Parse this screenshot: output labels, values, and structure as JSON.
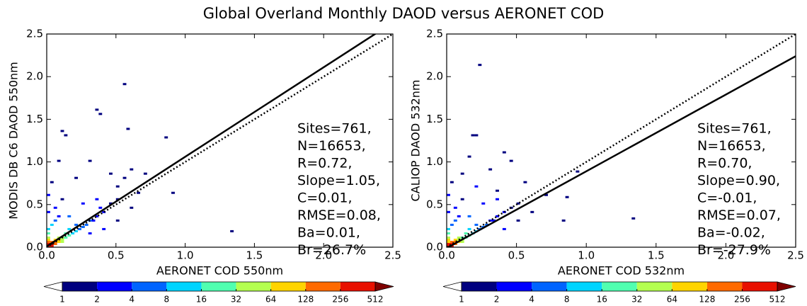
{
  "title": "Global Overland Monthly DAOD versus AERONET COD",
  "chart_data": [
    {
      "type": "density",
      "xlabel": "AERONET COD 550nm",
      "ylabel": "MODIS DB C6 DAOD 550nm",
      "xlim": [
        0,
        2.5
      ],
      "ylim": [
        0,
        2.5
      ],
      "xticks": [
        {
          "value": 0,
          "label": "0.0"
        },
        {
          "value": 0.5,
          "label": "0.5"
        },
        {
          "value": 1,
          "label": "1.0"
        },
        {
          "value": 1.5,
          "label": "1.5"
        },
        {
          "value": 2,
          "label": "2.0"
        },
        2.5
      ],
      "yticks": [
        {
          "value": 0,
          "label": "0.0"
        },
        {
          "value": 0.5,
          "label": "0.5"
        },
        {
          "value": 1,
          "label": "1.0"
        },
        {
          "value": 1.5,
          "label": "1.5"
        },
        {
          "value": 2,
          "label": "2.0"
        },
        2.5
      ],
      "bin_width": 0.025,
      "cells": {
        "x": [
          0,
          0.025,
          0,
          0.025,
          0.05,
          0.025,
          0.05,
          0.075,
          0.05,
          0.075,
          0.1,
          0.075,
          0.1,
          0,
          0,
          0,
          0.1,
          0.125,
          0.15,
          0.125,
          0.175,
          0.2,
          0.15,
          0.225,
          0.25,
          0.2,
          0.3,
          0.275,
          0.35,
          0.325,
          0.4,
          0.375,
          0.45,
          0.5,
          0,
          0,
          0.025,
          0.05,
          0.075,
          0,
          0.05,
          0.1,
          0,
          0.025,
          0.075,
          0.1,
          0.125,
          0.35,
          0.375,
          0.55,
          0.575,
          0.85,
          0.9,
          1.325,
          0.6,
          0.45,
          0.7,
          0.3,
          0.65,
          0.5,
          0.2,
          0.25,
          0.15,
          0.3,
          0.4,
          0.5,
          0.6,
          0.35,
          0.55
        ],
        "y": [
          0,
          0,
          0.025,
          0.025,
          0.025,
          0.05,
          0.05,
          0.05,
          0.075,
          0.075,
          0.075,
          0.1,
          0.1,
          0.05,
          0.075,
          0.1,
          0.05,
          0.1,
          0.125,
          0.15,
          0.15,
          0.175,
          0.2,
          0.2,
          0.225,
          0.25,
          0.3,
          0.25,
          0.35,
          0.3,
          0.4,
          0.45,
          0.5,
          0.55,
          0.15,
          0.2,
          0.25,
          0.3,
          0.35,
          0.4,
          0.45,
          0.55,
          0.6,
          0.75,
          1.0,
          1.35,
          1.3,
          1.6,
          1.55,
          1.9,
          1.375,
          1.275,
          0.625,
          0.175,
          0.9,
          0.85,
          0.85,
          1.0,
          0.625,
          0.7,
          0.8,
          0.5,
          0.35,
          0.15,
          0.2,
          0.3,
          0.45,
          0.55,
          0.8
        ],
        "counts": [
          400,
          300,
          350,
          600,
          250,
          200,
          180,
          100,
          90,
          70,
          50,
          40,
          35,
          150,
          80,
          50,
          60,
          25,
          20,
          18,
          12,
          10,
          9,
          6,
          5,
          5,
          4,
          5,
          3,
          3,
          2,
          2,
          1,
          1,
          30,
          15,
          8,
          5,
          3,
          3,
          2,
          1,
          2,
          1,
          1,
          1,
          1,
          1,
          1,
          1,
          1,
          1,
          1,
          1,
          1,
          1,
          1,
          1,
          1,
          1,
          1,
          3,
          4,
          3,
          2,
          1,
          1,
          2,
          1
        ]
      },
      "identity_line": true,
      "fit_line": {
        "slope": 1.05,
        "intercept": 0.01
      },
      "annotations": [
        "Sites=761,",
        "N=16653,",
        "R=0.72,",
        "Slope=1.05,",
        "C=0.01,",
        "RMSE=0.08,",
        "Ba=0.01,",
        "Br=26.7%"
      ],
      "colorbar": {
        "bounds": [
          1,
          2,
          4,
          8,
          16,
          32,
          64,
          128,
          256,
          512
        ],
        "colors": [
          "#ffffff",
          "#00007f",
          "#0000ff",
          "#0064ff",
          "#00d4ff",
          "#50ffb0",
          "#b4ff50",
          "#ffd400",
          "#ff6a00",
          "#e81000",
          "#7f0000"
        ]
      }
    },
    {
      "type": "density",
      "xlabel": "AERONET COD 532nm",
      "ylabel": "CALIOP DAOD 532nm",
      "xlim": [
        0,
        2.5
      ],
      "ylim": [
        0,
        2.5
      ],
      "xticks": [
        {
          "value": 0,
          "label": "0.0"
        },
        {
          "value": 0.5,
          "label": "0.5"
        },
        {
          "value": 1,
          "label": "1.0"
        },
        {
          "value": 1.5,
          "label": "1.5"
        },
        {
          "value": 2,
          "label": "2.0"
        },
        2.5
      ],
      "yticks": [
        {
          "value": 0,
          "label": "0.0"
        },
        {
          "value": 0.5,
          "label": "0.5"
        },
        {
          "value": 1,
          "label": "1.0"
        },
        {
          "value": 1.5,
          "label": "1.5"
        },
        {
          "value": 2,
          "label": "2.0"
        },
        2.5
      ],
      "bin_width": 0.025,
      "cells": {
        "x": [
          0,
          0.025,
          0,
          0.025,
          0.05,
          0.025,
          0.05,
          0.075,
          0.05,
          0.075,
          0.1,
          0.075,
          0.1,
          0,
          0,
          0,
          0.1,
          0.125,
          0.15,
          0.125,
          0.175,
          0.2,
          0.15,
          0.225,
          0.25,
          0.2,
          0.3,
          0.275,
          0.35,
          0.325,
          0.4,
          0.45,
          0.5,
          0,
          0,
          0.025,
          0.05,
          0.075,
          0,
          0.05,
          0.1,
          0,
          0.025,
          0.225,
          0.2,
          0.175,
          0.925,
          1.325,
          0.85,
          0.825,
          0.7,
          0.45,
          0.4,
          0.3,
          0.55,
          0.6,
          0.2,
          0.25,
          0.15,
          0.35,
          0.4,
          0.5,
          0.35,
          0.1,
          0.15
        ],
        "y": [
          0,
          0,
          0.025,
          0.025,
          0.025,
          0.05,
          0.05,
          0.05,
          0.075,
          0.075,
          0.075,
          0.1,
          0.1,
          0.05,
          0.075,
          0.1,
          0.05,
          0.1,
          0.125,
          0.15,
          0.15,
          0.175,
          0.2,
          0.2,
          0.225,
          0.25,
          0.3,
          0.25,
          0.35,
          0.3,
          0.4,
          0.45,
          0.5,
          0.15,
          0.2,
          0.25,
          0.3,
          0.35,
          0.4,
          0.45,
          0.55,
          0.6,
          0.75,
          2.125,
          1.3,
          1.3,
          0.875,
          0.325,
          0.575,
          0.3,
          0.6,
          1.0,
          1.1,
          0.9,
          0.75,
          0.4,
          0.7,
          0.5,
          0.35,
          0.55,
          0.2,
          0.3,
          0.65,
          0.85,
          1.05
        ],
        "counts": [
          500,
          350,
          300,
          450,
          220,
          250,
          150,
          90,
          80,
          60,
          40,
          35,
          30,
          120,
          70,
          45,
          50,
          22,
          18,
          16,
          10,
          9,
          8,
          5,
          4,
          4,
          3,
          4,
          2,
          2,
          2,
          1,
          1,
          25,
          14,
          7,
          5,
          3,
          3,
          2,
          1,
          2,
          1,
          1,
          1,
          1,
          1,
          1,
          1,
          1,
          1,
          1,
          1,
          1,
          1,
          1,
          2,
          3,
          4,
          2,
          2,
          1,
          1,
          1,
          1
        ]
      },
      "identity_line": true,
      "fit_line": {
        "slope": 0.9,
        "intercept": -0.01
      },
      "annotations": [
        "Sites=761,",
        "N=16653,",
        "R=0.70,",
        "Slope=0.90,",
        "C=-0.01,",
        "RMSE=0.07,",
        "Ba=-0.02,",
        "Br=-27.9%"
      ],
      "colorbar": {
        "bounds": [
          1,
          2,
          4,
          8,
          16,
          32,
          64,
          128,
          256,
          512
        ],
        "colors": [
          "#ffffff",
          "#00007f",
          "#0000ff",
          "#0064ff",
          "#00d4ff",
          "#50ffb0",
          "#b4ff50",
          "#ffd400",
          "#ff6a00",
          "#e81000",
          "#7f0000"
        ]
      }
    }
  ]
}
